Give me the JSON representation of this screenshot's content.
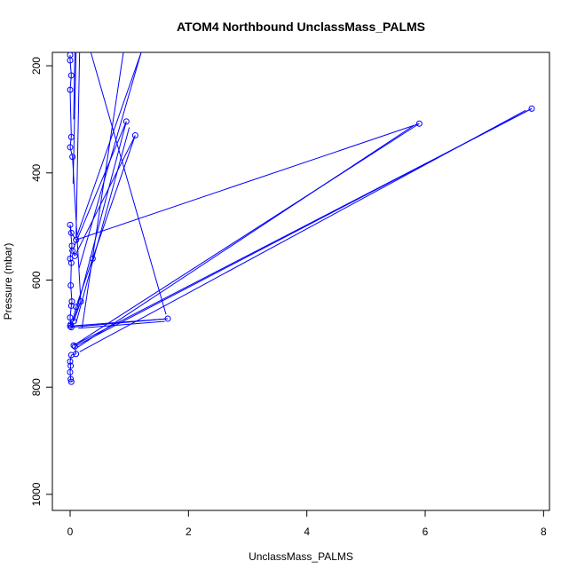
{
  "chart_data": {
    "type": "scatter",
    "title": "ATOM4 Northbound UnclassMass_PALMS",
    "xlabel": "UnclassMass_PALMS",
    "ylabel": "Pressure (mbar)",
    "xlim": [
      -0.3,
      8.1
    ],
    "ylim": [
      1030,
      175
    ],
    "y_reversed": true,
    "x_ticks": [
      0,
      2,
      4,
      6,
      8
    ],
    "y_ticks": [
      200,
      400,
      600,
      800,
      1000
    ],
    "grid": false,
    "legend": "none",
    "series_color": "#0000ff",
    "marker": "open-circle",
    "draw_style": "points-connected-by-lines",
    "points": [
      {
        "x": 0.02,
        "y": 790
      },
      {
        "x": 0.01,
        "y": 785
      },
      {
        "x": 0.0,
        "y": 772
      },
      {
        "x": 0.01,
        "y": 760
      },
      {
        "x": 0.0,
        "y": 752
      },
      {
        "x": 0.02,
        "y": 740
      },
      {
        "x": 0.1,
        "y": 738
      },
      {
        "x": 0.08,
        "y": 724
      },
      {
        "x": 7.8,
        "y": 280
      },
      {
        "x": 0.06,
        "y": 722
      },
      {
        "x": 5.9,
        "y": 308
      },
      {
        "x": 0.1,
        "y": 525
      },
      {
        "x": 0.02,
        "y": 512
      },
      {
        "x": 0.0,
        "y": 497
      },
      {
        "x": 0.03,
        "y": 536
      },
      {
        "x": 0.0,
        "y": 560
      },
      {
        "x": 0.02,
        "y": 568
      },
      {
        "x": 0.01,
        "y": 610
      },
      {
        "x": 0.03,
        "y": 640
      },
      {
        "x": 0.02,
        "y": 648
      },
      {
        "x": 0.0,
        "y": 670
      },
      {
        "x": 0.01,
        "y": 683
      },
      {
        "x": 0.0,
        "y": 686
      },
      {
        "x": 1.65,
        "y": 672
      },
      {
        "x": 0.02,
        "y": 688
      },
      {
        "x": 0.1,
        "y": 650
      },
      {
        "x": 0.38,
        "y": 560
      },
      {
        "x": 1.1,
        "y": 330
      },
      {
        "x": 0.08,
        "y": 555
      },
      {
        "x": 0.04,
        "y": 545
      },
      {
        "x": 0.95,
        "y": 304
      },
      {
        "x": 0.06,
        "y": 677
      },
      {
        "x": 0.18,
        "y": 640
      },
      {
        "x": 0.04,
        "y": 370
      },
      {
        "x": 0.0,
        "y": 352
      },
      {
        "x": 0.02,
        "y": 333
      },
      {
        "x": 0.0,
        "y": 245
      },
      {
        "x": 0.02,
        "y": 218
      },
      {
        "x": 0.0,
        "y": 190
      },
      {
        "x": 0.0,
        "y": 180
      }
    ],
    "extra_lines": [
      {
        "x": [
          0.12,
          1.2
        ],
        "y": [
          516,
          175
        ]
      },
      {
        "x": [
          0.15,
          1.2
        ],
        "y": [
          578,
          175
        ]
      },
      {
        "x": [
          0.2,
          0.9
        ],
        "y": [
          690,
          175
        ]
      },
      {
        "x": [
          1.62,
          0.35
        ],
        "y": [
          664,
          175
        ]
      },
      {
        "x": [
          0.1,
          1.0
        ],
        "y": [
          680,
          315
        ]
      },
      {
        "x": [
          0.12,
          5.8
        ],
        "y": [
          726,
          312
        ]
      },
      {
        "x": [
          0.14,
          1.6
        ],
        "y": [
          690,
          677
        ]
      },
      {
        "x": [
          0.16,
          7.7
        ],
        "y": [
          734,
          283
        ]
      },
      {
        "x": [
          0.1,
          0.16
        ],
        "y": [
          520,
          175
        ]
      },
      {
        "x": [
          0.05,
          0.1
        ],
        "y": [
          420,
          175
        ]
      },
      {
        "x": [
          0.06,
          0.08
        ],
        "y": [
          300,
          175
        ]
      }
    ]
  }
}
